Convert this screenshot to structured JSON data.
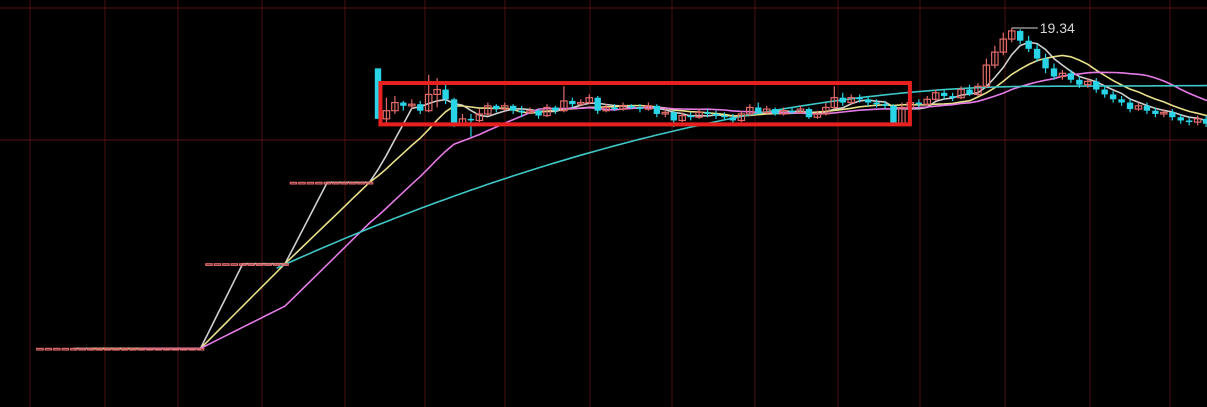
{
  "chart_data": {
    "type": "candlestick",
    "title": "",
    "annotation": {
      "max_price_label": "19.34",
      "max_price": 19.34,
      "max_index": 115
    },
    "highlight_box": {
      "from_index": 41,
      "to_index": 102,
      "price_low": 16.38,
      "price_high": 17.65,
      "color": "#e82020"
    },
    "grid": true,
    "colors": {
      "up": "#e06a6a",
      "down": "#28d4e6",
      "ma_yellow": "#e8e08a",
      "ma_magenta": "#e47ae6",
      "ma_cyan": "#3fc8c8",
      "ma_white": "#cfcfcf",
      "grid": "#4a1010",
      "dash_grid": "#5a1414"
    },
    "candles": [
      [
        9.5,
        9.5,
        9.5,
        9.5
      ],
      [
        9.5,
        9.5,
        9.5,
        9.5
      ],
      [
        9.5,
        9.5,
        9.5,
        9.5
      ],
      [
        9.5,
        9.5,
        9.5,
        9.5
      ],
      [
        9.5,
        9.5,
        9.5,
        9.5
      ],
      [
        9.5,
        9.5,
        9.5,
        9.5
      ],
      [
        9.5,
        9.5,
        9.5,
        9.5
      ],
      [
        9.5,
        9.5,
        9.5,
        9.5
      ],
      [
        9.5,
        9.5,
        9.5,
        9.5
      ],
      [
        9.5,
        9.5,
        9.5,
        9.5
      ],
      [
        9.5,
        9.5,
        9.5,
        9.5
      ],
      [
        9.5,
        9.5,
        9.5,
        9.5
      ],
      [
        9.5,
        9.5,
        9.5,
        9.5
      ],
      [
        9.5,
        9.5,
        9.5,
        9.5
      ],
      [
        9.5,
        9.5,
        9.5,
        9.5
      ],
      [
        9.5,
        9.5,
        9.5,
        9.5
      ],
      [
        9.5,
        9.5,
        9.5,
        9.5
      ],
      [
        9.5,
        9.5,
        9.5,
        9.5
      ],
      [
        9.5,
        9.5,
        9.5,
        9.5
      ],
      [
        9.5,
        9.5,
        9.5,
        9.5
      ],
      [
        12.1,
        12.1,
        12.1,
        12.1
      ],
      [
        12.1,
        12.1,
        12.1,
        12.1
      ],
      [
        12.1,
        12.1,
        12.1,
        12.1
      ],
      [
        12.1,
        12.1,
        12.1,
        12.1
      ],
      [
        12.1,
        12.1,
        12.1,
        12.1
      ],
      [
        12.1,
        12.1,
        12.1,
        12.1
      ],
      [
        12.1,
        12.1,
        12.1,
        12.1
      ],
      [
        12.1,
        12.1,
        12.1,
        12.1
      ],
      [
        12.1,
        12.1,
        12.1,
        12.1
      ],
      [
        12.1,
        12.1,
        12.1,
        12.1
      ],
      [
        14.6,
        14.6,
        14.6,
        14.6
      ],
      [
        14.6,
        14.6,
        14.6,
        14.6
      ],
      [
        14.6,
        14.6,
        14.6,
        14.6
      ],
      [
        14.6,
        14.6,
        14.6,
        14.6
      ],
      [
        14.6,
        14.6,
        14.6,
        14.6
      ],
      [
        14.6,
        14.6,
        14.6,
        14.6
      ],
      [
        14.6,
        14.6,
        14.6,
        14.6
      ],
      [
        14.6,
        14.6,
        14.6,
        14.6
      ],
      [
        14.6,
        14.6,
        14.6,
        14.6
      ],
      [
        14.6,
        14.6,
        14.6,
        14.6
      ],
      [
        18.1,
        16.55,
        18.1,
        16.55
      ],
      [
        16.55,
        16.8,
        17.2,
        16.4
      ],
      [
        16.8,
        17.05,
        17.25,
        16.7
      ],
      [
        17.05,
        16.95,
        17.1,
        16.8
      ],
      [
        16.95,
        17.0,
        17.15,
        16.85
      ],
      [
        17.0,
        16.8,
        17.1,
        16.7
      ],
      [
        16.8,
        17.3,
        17.9,
        16.75
      ],
      [
        17.3,
        17.45,
        17.8,
        16.9
      ],
      [
        17.45,
        17.15,
        17.6,
        17.0
      ],
      [
        17.15,
        16.4,
        17.2,
        16.3
      ],
      [
        16.4,
        16.55,
        16.7,
        16.35
      ],
      [
        16.55,
        16.5,
        16.7,
        16.0
      ],
      [
        16.5,
        16.7,
        16.85,
        16.45
      ],
      [
        16.7,
        16.95,
        17.05,
        16.65
      ],
      [
        16.95,
        16.85,
        17.0,
        16.75
      ],
      [
        16.85,
        16.95,
        17.05,
        16.8
      ],
      [
        16.95,
        16.8,
        17.0,
        16.7
      ],
      [
        16.8,
        16.75,
        16.95,
        16.6
      ],
      [
        16.75,
        16.8,
        16.9,
        16.7
      ],
      [
        16.8,
        16.65,
        16.85,
        16.55
      ],
      [
        16.65,
        16.9,
        17.0,
        16.6
      ],
      [
        16.9,
        16.8,
        16.95,
        16.7
      ],
      [
        16.8,
        17.1,
        17.55,
        16.75
      ],
      [
        17.1,
        17.0,
        17.2,
        16.9
      ],
      [
        17.0,
        17.05,
        17.15,
        16.95
      ],
      [
        17.05,
        17.2,
        17.3,
        17.0
      ],
      [
        17.2,
        16.8,
        17.25,
        16.7
      ],
      [
        16.8,
        16.9,
        17.0,
        16.75
      ],
      [
        16.9,
        16.85,
        17.0,
        16.8
      ],
      [
        16.85,
        16.95,
        17.05,
        16.8
      ],
      [
        16.95,
        16.9,
        17.0,
        16.85
      ],
      [
        16.9,
        16.85,
        17.0,
        16.75
      ],
      [
        16.85,
        16.95,
        17.05,
        16.8
      ],
      [
        16.95,
        16.7,
        17.0,
        16.6
      ],
      [
        16.7,
        16.75,
        16.85,
        16.6
      ],
      [
        16.75,
        16.5,
        16.8,
        16.3
      ],
      [
        16.5,
        16.65,
        16.75,
        16.45
      ],
      [
        16.65,
        16.6,
        16.75,
        16.5
      ],
      [
        16.6,
        16.75,
        16.85,
        16.55
      ],
      [
        16.75,
        16.7,
        16.85,
        16.6
      ],
      [
        16.7,
        16.65,
        16.8,
        16.55
      ],
      [
        16.65,
        16.6,
        16.75,
        16.5
      ],
      [
        16.6,
        16.5,
        16.7,
        16.4
      ],
      [
        16.5,
        16.7,
        16.8,
        16.45
      ],
      [
        16.7,
        16.9,
        17.0,
        16.65
      ],
      [
        16.9,
        16.75,
        17.05,
        16.7
      ],
      [
        16.75,
        16.85,
        16.95,
        16.7
      ],
      [
        16.85,
        16.7,
        16.9,
        16.65
      ],
      [
        16.7,
        16.8,
        16.9,
        16.65
      ],
      [
        16.8,
        16.75,
        16.9,
        16.7
      ],
      [
        16.75,
        16.85,
        16.95,
        16.7
      ],
      [
        16.85,
        16.6,
        16.9,
        16.55
      ],
      [
        16.6,
        16.7,
        16.8,
        16.55
      ],
      [
        16.7,
        16.9,
        17.05,
        16.65
      ],
      [
        16.9,
        17.2,
        17.55,
        16.85
      ],
      [
        17.2,
        17.05,
        17.35,
        16.95
      ],
      [
        17.05,
        17.2,
        17.3,
        17.0
      ],
      [
        17.2,
        17.15,
        17.3,
        17.05
      ],
      [
        17.15,
        17.05,
        17.25,
        16.95
      ],
      [
        17.05,
        17.0,
        17.15,
        16.9
      ],
      [
        17.0,
        16.95,
        17.1,
        16.85
      ],
      [
        16.95,
        16.4,
        17.0,
        16.35
      ],
      [
        16.4,
        16.9,
        17.05,
        16.35
      ],
      [
        16.9,
        17.05,
        17.15,
        16.85
      ],
      [
        17.05,
        17.0,
        17.15,
        16.9
      ],
      [
        17.0,
        17.15,
        17.25,
        16.95
      ],
      [
        17.15,
        17.35,
        17.45,
        17.1
      ],
      [
        17.35,
        17.25,
        17.45,
        17.15
      ],
      [
        17.25,
        17.2,
        17.35,
        17.1
      ],
      [
        17.2,
        17.45,
        17.55,
        17.15
      ],
      [
        17.45,
        17.3,
        17.6,
        17.25
      ],
      [
        17.3,
        17.55,
        17.65,
        17.25
      ],
      [
        17.55,
        18.2,
        18.4,
        17.5
      ],
      [
        18.2,
        18.6,
        18.8,
        18.1
      ],
      [
        18.6,
        19.0,
        19.2,
        18.5
      ],
      [
        19.0,
        19.25,
        19.34,
        18.9
      ],
      [
        19.25,
        18.95,
        19.3,
        18.85
      ],
      [
        18.95,
        18.7,
        19.1,
        18.6
      ],
      [
        18.7,
        18.4,
        18.85,
        18.3
      ],
      [
        18.4,
        18.1,
        18.55,
        17.95
      ],
      [
        18.1,
        17.85,
        18.25,
        17.75
      ],
      [
        17.85,
        17.95,
        18.05,
        17.75
      ],
      [
        17.95,
        17.75,
        18.05,
        17.65
      ],
      [
        17.75,
        17.6,
        17.85,
        17.5
      ],
      [
        17.6,
        17.7,
        17.8,
        17.5
      ],
      [
        17.7,
        17.45,
        17.8,
        17.35
      ],
      [
        17.45,
        17.3,
        17.55,
        17.2
      ],
      [
        17.3,
        17.15,
        17.4,
        17.05
      ],
      [
        17.15,
        17.05,
        17.25,
        16.95
      ],
      [
        17.05,
        16.85,
        17.15,
        16.75
      ],
      [
        16.85,
        16.95,
        17.05,
        16.8
      ],
      [
        16.95,
        16.8,
        17.05,
        16.7
      ],
      [
        16.8,
        16.7,
        16.9,
        16.6
      ],
      [
        16.7,
        16.75,
        16.85,
        16.6
      ],
      [
        16.75,
        16.6,
        16.85,
        16.5
      ],
      [
        16.6,
        16.5,
        16.7,
        16.4
      ],
      [
        16.5,
        16.45,
        16.6,
        16.35
      ],
      [
        16.45,
        16.55,
        16.65,
        16.35
      ],
      [
        16.55,
        16.4,
        16.65,
        16.3
      ],
      [
        16.4,
        16.6,
        16.75,
        16.35
      ],
      [
        16.6,
        16.8,
        16.9,
        16.55
      ],
      [
        16.8,
        16.75,
        16.95,
        16.65
      ],
      [
        16.75,
        16.9,
        17.0,
        16.7
      ],
      [
        16.9,
        16.85,
        17.0,
        16.75
      ]
    ]
  }
}
